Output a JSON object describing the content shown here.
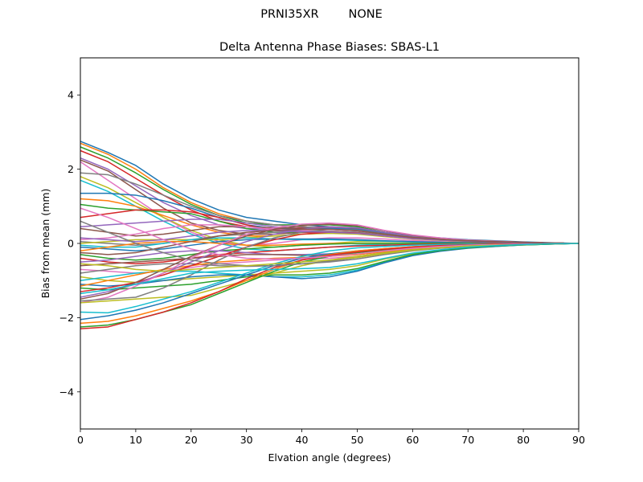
{
  "header": {
    "antenna": "PRNI35XR",
    "radome": "NONE"
  },
  "chart_data": {
    "type": "line",
    "title": "Delta Antenna Phase Biases: SBAS-L1",
    "xlabel": "Elvation angle (degrees)",
    "ylabel": "Bias from mean (mm)",
    "xlim": [
      0,
      90
    ],
    "ylim": [
      -5,
      5
    ],
    "xticks": [
      0,
      10,
      20,
      30,
      40,
      50,
      60,
      70,
      80,
      90
    ],
    "yticks": [
      -4,
      -2,
      0,
      2,
      4
    ],
    "grid": false,
    "legend": "none",
    "x": [
      0,
      5,
      10,
      15,
      20,
      25,
      30,
      35,
      40,
      45,
      50,
      55,
      60,
      65,
      70,
      75,
      80,
      85,
      90
    ],
    "palette": [
      "#1f77b4",
      "#ff7f0e",
      "#2ca02c",
      "#d62728",
      "#9467bd",
      "#8c564b",
      "#e377c2",
      "#7f7f7f",
      "#bcbd22",
      "#17becf"
    ],
    "series": [
      {
        "values": [
          2.75,
          2.45,
          2.1,
          1.6,
          1.2,
          0.9,
          0.7,
          0.6,
          0.5,
          0.45,
          0.4,
          0.3,
          0.2,
          0.15,
          0.1,
          0.07,
          0.04,
          0.02,
          0.0
        ]
      },
      {
        "values": [
          2.7,
          2.4,
          2.0,
          1.5,
          1.1,
          0.8,
          0.6,
          0.5,
          0.45,
          0.4,
          0.35,
          0.25,
          0.18,
          0.12,
          0.08,
          0.05,
          0.03,
          0.01,
          0.0
        ]
      },
      {
        "values": [
          2.6,
          2.3,
          1.9,
          1.45,
          1.05,
          0.75,
          0.55,
          0.5,
          0.5,
          0.5,
          0.45,
          0.3,
          0.2,
          0.13,
          0.09,
          0.06,
          0.03,
          0.01,
          0.0
        ]
      },
      {
        "values": [
          2.5,
          2.2,
          1.75,
          1.3,
          0.9,
          0.6,
          0.45,
          0.4,
          0.42,
          0.45,
          0.4,
          0.28,
          0.18,
          0.12,
          0.08,
          0.05,
          0.03,
          0.01,
          0.0
        ]
      },
      {
        "values": [
          2.3,
          2.0,
          1.55,
          1.1,
          0.75,
          0.5,
          0.4,
          0.38,
          0.4,
          0.42,
          0.38,
          0.27,
          0.17,
          0.11,
          0.07,
          0.05,
          0.03,
          0.01,
          0.0
        ]
      },
      {
        "values": [
          2.25,
          1.95,
          1.45,
          0.95,
          0.55,
          0.35,
          0.25,
          0.25,
          0.3,
          0.33,
          0.3,
          0.22,
          0.15,
          0.1,
          0.07,
          0.04,
          0.02,
          0.01,
          0.0
        ]
      },
      {
        "values": [
          2.2,
          1.7,
          1.2,
          0.7,
          0.3,
          0.05,
          -0.05,
          0.0,
          0.1,
          0.15,
          0.15,
          0.12,
          0.08,
          0.05,
          0.03,
          0.02,
          0.01,
          0.0,
          0.0
        ]
      },
      {
        "values": [
          1.9,
          1.85,
          1.6,
          1.3,
          1.0,
          0.75,
          0.6,
          0.5,
          0.45,
          0.4,
          0.35,
          0.25,
          0.17,
          0.11,
          0.07,
          0.05,
          0.03,
          0.01,
          0.0
        ]
      },
      {
        "values": [
          1.8,
          1.5,
          1.1,
          0.7,
          0.35,
          0.1,
          -0.05,
          -0.1,
          -0.05,
          0.0,
          0.05,
          0.05,
          0.04,
          0.03,
          0.02,
          0.01,
          0.01,
          0.0,
          0.0
        ]
      },
      {
        "values": [
          1.7,
          1.4,
          1.0,
          0.6,
          0.25,
          0.0,
          -0.15,
          -0.2,
          -0.15,
          -0.1,
          -0.05,
          -0.02,
          0.0,
          0.0,
          0.0,
          0.0,
          0.0,
          0.0,
          0.0
        ]
      },
      {
        "values": [
          1.35,
          1.35,
          1.3,
          1.15,
          0.95,
          0.7,
          0.5,
          0.4,
          0.4,
          0.4,
          0.38,
          0.28,
          0.18,
          0.12,
          0.08,
          0.05,
          0.03,
          0.01,
          0.0
        ]
      },
      {
        "values": [
          1.2,
          1.15,
          1.0,
          0.75,
          0.5,
          0.3,
          0.2,
          0.2,
          0.25,
          0.28,
          0.26,
          0.2,
          0.13,
          0.09,
          0.06,
          0.04,
          0.02,
          0.01,
          0.0
        ]
      },
      {
        "values": [
          1.05,
          0.95,
          0.9,
          0.85,
          0.8,
          0.6,
          0.4,
          0.3,
          0.3,
          0.3,
          0.28,
          0.2,
          0.14,
          0.09,
          0.06,
          0.04,
          0.02,
          0.01,
          0.0
        ]
      },
      {
        "values": [
          0.7,
          0.8,
          0.9,
          0.9,
          0.85,
          0.7,
          0.5,
          0.35,
          0.3,
          0.3,
          0.27,
          0.2,
          0.13,
          0.09,
          0.06,
          0.04,
          0.02,
          0.01,
          0.0
        ]
      },
      {
        "values": [
          0.45,
          0.5,
          0.55,
          0.6,
          0.65,
          0.65,
          0.55,
          0.45,
          0.4,
          0.38,
          0.35,
          0.26,
          0.17,
          0.11,
          0.07,
          0.05,
          0.03,
          0.01,
          0.0
        ]
      },
      {
        "values": [
          0.4,
          0.3,
          0.2,
          0.25,
          0.35,
          0.45,
          0.45,
          0.42,
          0.4,
          0.38,
          0.34,
          0.25,
          0.16,
          0.11,
          0.07,
          0.05,
          0.03,
          0.01,
          0.0
        ]
      },
      {
        "values": [
          0.1,
          0.15,
          0.25,
          0.4,
          0.5,
          0.5,
          0.45,
          0.38,
          0.35,
          0.33,
          0.3,
          0.22,
          0.15,
          0.1,
          0.06,
          0.04,
          0.02,
          0.01,
          0.0
        ]
      },
      {
        "values": [
          0.05,
          0.0,
          -0.05,
          0.0,
          0.1,
          0.2,
          0.25,
          0.3,
          0.32,
          0.32,
          0.3,
          0.22,
          0.15,
          0.1,
          0.06,
          0.04,
          0.02,
          0.01,
          0.0
        ]
      },
      {
        "values": [
          0.0,
          0.05,
          0.1,
          0.1,
          0.1,
          0.1,
          0.15,
          0.2,
          0.25,
          0.27,
          0.25,
          0.18,
          0.12,
          0.08,
          0.05,
          0.03,
          0.02,
          0.01,
          0.0
        ]
      },
      {
        "values": [
          -0.05,
          -0.1,
          -0.1,
          0.0,
          0.1,
          0.15,
          0.15,
          0.12,
          0.1,
          0.1,
          0.08,
          0.06,
          0.04,
          0.03,
          0.02,
          0.01,
          0.0,
          0.0,
          0.0
        ]
      },
      {
        "values": [
          -0.1,
          -0.15,
          -0.2,
          -0.15,
          -0.05,
          0.05,
          0.1,
          0.12,
          0.12,
          0.12,
          0.1,
          0.07,
          0.05,
          0.03,
          0.02,
          0.01,
          0.01,
          0.0,
          0.0
        ]
      },
      {
        "values": [
          -0.2,
          -0.1,
          0.0,
          0.05,
          0.05,
          0.0,
          -0.05,
          -0.05,
          -0.02,
          0.0,
          0.0,
          0.0,
          0.0,
          0.0,
          0.0,
          0.0,
          0.0,
          0.0,
          0.0
        ]
      },
      {
        "values": [
          -0.3,
          -0.4,
          -0.45,
          -0.4,
          -0.3,
          -0.2,
          -0.15,
          -0.1,
          -0.05,
          -0.02,
          0.0,
          0.0,
          0.0,
          0.0,
          0.0,
          0.0,
          0.0,
          0.0,
          0.0
        ]
      },
      {
        "values": [
          -0.4,
          -0.5,
          -0.55,
          -0.5,
          -0.4,
          -0.3,
          -0.25,
          -0.2,
          -0.15,
          -0.1,
          -0.07,
          -0.05,
          -0.03,
          -0.02,
          -0.01,
          0.0,
          0.0,
          0.0,
          0.0
        ]
      },
      {
        "values": [
          -0.5,
          -0.45,
          -0.35,
          -0.25,
          -0.2,
          -0.2,
          -0.25,
          -0.3,
          -0.3,
          -0.28,
          -0.25,
          -0.18,
          -0.12,
          -0.08,
          -0.05,
          -0.03,
          -0.02,
          -0.01,
          0.0
        ]
      },
      {
        "values": [
          -0.6,
          -0.55,
          -0.5,
          -0.45,
          -0.4,
          -0.35,
          -0.3,
          -0.3,
          -0.32,
          -0.33,
          -0.3,
          -0.22,
          -0.15,
          -0.1,
          -0.06,
          -0.04,
          -0.02,
          -0.01,
          0.0
        ]
      },
      {
        "values": [
          -0.7,
          -0.75,
          -0.8,
          -0.75,
          -0.65,
          -0.55,
          -0.5,
          -0.45,
          -0.42,
          -0.4,
          -0.35,
          -0.25,
          -0.17,
          -0.11,
          -0.07,
          -0.05,
          -0.03,
          -0.01,
          0.0
        ]
      },
      {
        "values": [
          -0.8,
          -0.7,
          -0.6,
          -0.55,
          -0.55,
          -0.6,
          -0.62,
          -0.6,
          -0.55,
          -0.5,
          -0.42,
          -0.3,
          -0.2,
          -0.13,
          -0.08,
          -0.05,
          -0.03,
          -0.01,
          0.0
        ]
      },
      {
        "values": [
          -0.9,
          -1.0,
          -1.05,
          -1.0,
          -0.95,
          -0.9,
          -0.85,
          -0.8,
          -0.75,
          -0.7,
          -0.6,
          -0.42,
          -0.28,
          -0.18,
          -0.11,
          -0.07,
          -0.04,
          -0.02,
          0.0
        ]
      },
      {
        "values": [
          -1.0,
          -0.9,
          -0.8,
          -0.75,
          -0.75,
          -0.8,
          -0.85,
          -0.9,
          -0.9,
          -0.85,
          -0.72,
          -0.5,
          -0.32,
          -0.2,
          -0.12,
          -0.08,
          -0.04,
          -0.02,
          0.0
        ]
      },
      {
        "values": [
          -1.1,
          -1.15,
          -1.1,
          -1.0,
          -0.9,
          -0.85,
          -0.85,
          -0.9,
          -0.95,
          -0.9,
          -0.75,
          -0.52,
          -0.33,
          -0.21,
          -0.13,
          -0.08,
          -0.04,
          -0.02,
          0.0
        ]
      },
      {
        "values": [
          -1.15,
          -1.0,
          -0.85,
          -0.7,
          -0.6,
          -0.5,
          -0.45,
          -0.4,
          -0.38,
          -0.35,
          -0.3,
          -0.22,
          -0.15,
          -0.1,
          -0.06,
          -0.04,
          -0.02,
          -0.01,
          0.0
        ]
      },
      {
        "values": [
          -1.2,
          -1.25,
          -1.2,
          -1.15,
          -1.1,
          -1.0,
          -0.9,
          -0.85,
          -0.85,
          -0.8,
          -0.68,
          -0.48,
          -0.3,
          -0.19,
          -0.12,
          -0.07,
          -0.04,
          -0.02,
          0.0
        ]
      },
      {
        "values": [
          -1.3,
          -1.2,
          -1.05,
          -0.85,
          -0.6,
          -0.35,
          -0.1,
          0.1,
          0.25,
          0.3,
          0.28,
          0.2,
          0.13,
          0.09,
          0.06,
          0.04,
          0.02,
          0.01,
          0.0
        ]
      },
      {
        "values": [
          -1.45,
          -1.3,
          -1.1,
          -0.8,
          -0.5,
          -0.2,
          0.05,
          0.25,
          0.38,
          0.45,
          0.42,
          0.3,
          0.2,
          0.13,
          0.08,
          0.05,
          0.03,
          0.01,
          0.0
        ]
      },
      {
        "values": [
          -1.5,
          -1.35,
          -1.05,
          -0.7,
          -0.35,
          -0.05,
          0.2,
          0.38,
          0.48,
          0.52,
          0.48,
          0.34,
          0.22,
          0.14,
          0.09,
          0.06,
          0.03,
          0.01,
          0.0
        ]
      },
      {
        "values": [
          -1.6,
          -1.45,
          -1.15,
          -0.8,
          -0.4,
          -0.05,
          0.25,
          0.42,
          0.52,
          0.55,
          0.5,
          0.35,
          0.23,
          0.15,
          0.09,
          0.06,
          0.03,
          0.01,
          0.0
        ]
      },
      {
        "values": [
          -1.55,
          -1.5,
          -1.45,
          -1.2,
          -0.85,
          -0.45,
          -0.1,
          0.15,
          0.3,
          0.38,
          0.36,
          0.26,
          0.17,
          0.11,
          0.07,
          0.05,
          0.03,
          0.01,
          0.0
        ]
      },
      {
        "values": [
          -1.6,
          -1.55,
          -1.5,
          -1.45,
          -1.4,
          -1.2,
          -1.0,
          -0.8,
          -0.6,
          -0.45,
          -0.35,
          -0.25,
          -0.17,
          -0.11,
          -0.07,
          -0.05,
          -0.03,
          -0.01,
          0.0
        ]
      },
      {
        "values": [
          -1.85,
          -1.87,
          -1.7,
          -1.5,
          -1.3,
          -1.05,
          -0.8,
          -0.55,
          -0.35,
          -0.2,
          -0.12,
          -0.08,
          -0.05,
          -0.03,
          -0.02,
          -0.01,
          0.0,
          0.0,
          0.0
        ]
      },
      {
        "values": [
          -2.05,
          -1.95,
          -1.8,
          -1.6,
          -1.35,
          -1.1,
          -0.85,
          -0.6,
          -0.4,
          -0.28,
          -0.2,
          -0.14,
          -0.09,
          -0.06,
          -0.04,
          -0.02,
          -0.01,
          0.0,
          0.0
        ]
      },
      {
        "values": [
          -2.15,
          -2.1,
          -1.95,
          -1.75,
          -1.55,
          -1.3,
          -1.0,
          -0.7,
          -0.45,
          -0.3,
          -0.2,
          -0.14,
          -0.09,
          -0.06,
          -0.04,
          -0.02,
          -0.01,
          0.0,
          0.0
        ]
      },
      {
        "values": [
          -2.25,
          -2.2,
          -2.05,
          -1.85,
          -1.65,
          -1.35,
          -1.05,
          -0.75,
          -0.5,
          -0.35,
          -0.25,
          -0.17,
          -0.11,
          -0.07,
          -0.04,
          -0.03,
          -0.01,
          0.0,
          0.0
        ]
      },
      {
        "values": [
          -2.3,
          -2.25,
          -2.05,
          -1.85,
          -1.6,
          -1.3,
          -0.95,
          -0.65,
          -0.45,
          -0.32,
          -0.23,
          -0.16,
          -0.1,
          -0.06,
          -0.04,
          -0.02,
          -0.01,
          0.0,
          0.0
        ]
      },
      {
        "values": [
          0.15,
          0.1,
          0.05,
          0.1,
          0.2,
          0.3,
          0.35,
          0.35,
          0.32,
          0.3,
          0.27,
          0.2,
          0.13,
          0.09,
          0.06,
          0.04,
          0.02,
          0.01,
          0.0
        ]
      },
      {
        "values": [
          -0.25,
          -0.3,
          -0.25,
          -0.1,
          0.05,
          0.2,
          0.3,
          0.35,
          0.38,
          0.38,
          0.34,
          0.25,
          0.16,
          0.11,
          0.07,
          0.05,
          0.03,
          0.01,
          0.0
        ]
      },
      {
        "values": [
          0.95,
          0.7,
          0.4,
          0.1,
          -0.15,
          -0.3,
          -0.4,
          -0.42,
          -0.4,
          -0.35,
          -0.28,
          -0.2,
          -0.13,
          -0.08,
          -0.05,
          -0.03,
          -0.02,
          -0.01,
          0.0
        ]
      },
      {
        "values": [
          0.6,
          0.3,
          0.0,
          -0.25,
          -0.45,
          -0.55,
          -0.6,
          -0.6,
          -0.55,
          -0.48,
          -0.38,
          -0.27,
          -0.18,
          -0.12,
          -0.07,
          -0.05,
          -0.03,
          -0.01,
          0.0
        ]
      },
      {
        "values": [
          -0.55,
          -0.6,
          -0.7,
          -0.75,
          -0.7,
          -0.65,
          -0.6,
          -0.55,
          -0.5,
          -0.45,
          -0.38,
          -0.27,
          -0.18,
          -0.12,
          -0.07,
          -0.05,
          -0.03,
          -0.01,
          0.0
        ]
      },
      {
        "values": [
          -1.35,
          -1.25,
          -1.1,
          -0.95,
          -0.8,
          -0.75,
          -0.72,
          -0.7,
          -0.68,
          -0.65,
          -0.55,
          -0.4,
          -0.26,
          -0.17,
          -0.1,
          -0.06,
          -0.03,
          -0.01,
          0.0
        ]
      }
    ]
  }
}
